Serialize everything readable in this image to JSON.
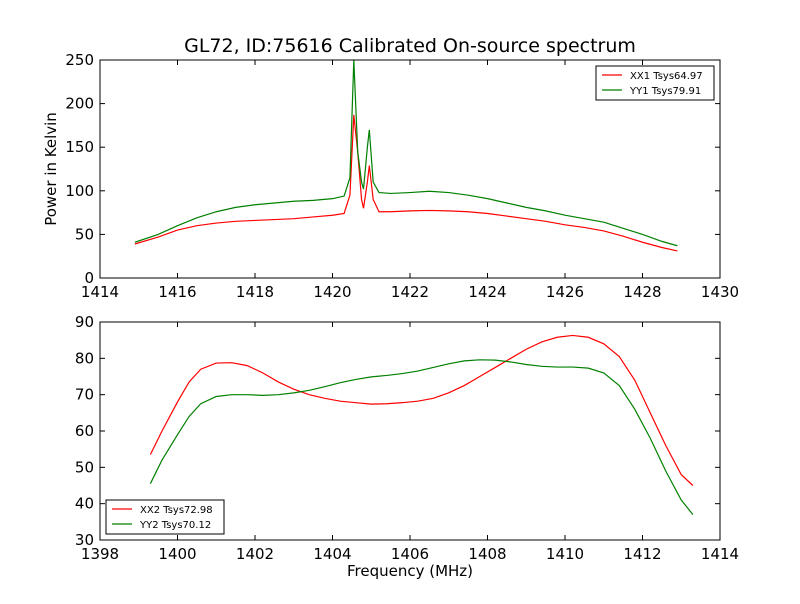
{
  "title": "GL72, ID:75616 Calibrated On-source spectrum",
  "colors": {
    "red": "#ff0000",
    "green": "#008000"
  },
  "chart_data": [
    {
      "type": "line",
      "xlabel": "",
      "ylabel": "Power in Kelvin",
      "xlim": [
        1414,
        1430
      ],
      "ylim": [
        0,
        250
      ],
      "xticks": [
        1414,
        1416,
        1418,
        1420,
        1422,
        1424,
        1426,
        1428,
        1430
      ],
      "yticks": [
        0,
        50,
        100,
        150,
        200,
        250
      ],
      "legend_position": "top-right",
      "series": [
        {
          "name": "XX1 Tsys64.97",
          "color": "#ff0000",
          "x": [
            1414.9,
            1415.5,
            1416,
            1416.5,
            1417,
            1417.5,
            1418,
            1418.5,
            1419,
            1419.5,
            1420,
            1420.3,
            1420.45,
            1420.55,
            1420.65,
            1420.75,
            1420.8,
            1420.9,
            1420.95,
            1421.05,
            1421.2,
            1421.5,
            1422,
            1422.5,
            1423,
            1423.5,
            1424,
            1424.5,
            1425,
            1425.5,
            1426,
            1426.5,
            1427,
            1427.5,
            1428,
            1428.5,
            1428.9
          ],
          "y": [
            39,
            47,
            55,
            60,
            63,
            65,
            66,
            67,
            68,
            70,
            72,
            74,
            95,
            187,
            145,
            90,
            80,
            110,
            129,
            90,
            76,
            76,
            77,
            77.5,
            77,
            76,
            74,
            71,
            68,
            65,
            61,
            58,
            54,
            48,
            41,
            35,
            31
          ]
        },
        {
          "name": "YY1 Tsys79.91",
          "color": "#008000",
          "x": [
            1414.9,
            1415.5,
            1416,
            1416.5,
            1417,
            1417.5,
            1418,
            1418.5,
            1419,
            1419.5,
            1420,
            1420.3,
            1420.45,
            1420.55,
            1420.65,
            1420.75,
            1420.8,
            1420.9,
            1420.95,
            1421.05,
            1421.2,
            1421.5,
            1422,
            1422.5,
            1423,
            1423.5,
            1424,
            1424.5,
            1425,
            1425.5,
            1426,
            1426.5,
            1427,
            1427.5,
            1428,
            1428.5,
            1428.9
          ],
          "y": [
            41,
            50,
            60,
            69,
            76,
            81,
            84,
            86,
            88,
            89,
            91,
            94,
            115,
            250,
            145,
            110,
            102,
            150,
            170,
            110,
            98,
            97,
            98,
            99.5,
            98,
            95,
            91,
            86,
            81,
            77,
            72,
            68,
            64,
            57,
            50,
            42,
            37
          ]
        }
      ]
    },
    {
      "type": "line",
      "xlabel": "Frequency (MHz)",
      "ylabel": "",
      "xlim": [
        1398,
        1414
      ],
      "ylim": [
        30,
        90
      ],
      "xticks": [
        1398,
        1400,
        1402,
        1404,
        1406,
        1408,
        1410,
        1412,
        1414
      ],
      "yticks": [
        30,
        40,
        50,
        60,
        70,
        80,
        90
      ],
      "legend_position": "bottom-left",
      "series": [
        {
          "name": "XX2 Tsys72.98",
          "color": "#ff0000",
          "x": [
            1399.3,
            1399.6,
            1400,
            1400.3,
            1400.6,
            1401,
            1401.4,
            1401.8,
            1402.2,
            1402.6,
            1403,
            1403.4,
            1403.8,
            1404.2,
            1404.6,
            1405,
            1405.4,
            1405.8,
            1406.2,
            1406.6,
            1407,
            1407.4,
            1407.8,
            1408.2,
            1408.6,
            1409,
            1409.4,
            1409.8,
            1410.2,
            1410.6,
            1411,
            1411.4,
            1411.8,
            1412.2,
            1412.6,
            1413,
            1413.3
          ],
          "y": [
            53.5,
            60,
            68,
            73.5,
            77,
            78.7,
            78.8,
            78,
            76,
            73.5,
            71.5,
            70,
            69,
            68.2,
            67.8,
            67.4,
            67.5,
            67.8,
            68.2,
            69,
            70.5,
            72.5,
            75,
            77.5,
            80,
            82.5,
            84.5,
            85.8,
            86.3,
            85.8,
            84,
            80.5,
            74,
            65,
            56,
            48,
            45
          ]
        },
        {
          "name": "YY2 Tsys70.12",
          "color": "#008000",
          "x": [
            1399.3,
            1399.6,
            1400,
            1400.3,
            1400.6,
            1401,
            1401.4,
            1401.8,
            1402.2,
            1402.6,
            1403,
            1403.4,
            1403.8,
            1404.2,
            1404.6,
            1405,
            1405.4,
            1405.8,
            1406.2,
            1406.6,
            1407,
            1407.4,
            1407.8,
            1408.2,
            1408.6,
            1409,
            1409.4,
            1409.8,
            1410.2,
            1410.6,
            1411,
            1411.4,
            1411.8,
            1412.2,
            1412.6,
            1413,
            1413.3
          ],
          "y": [
            45.5,
            52,
            59,
            64,
            67.5,
            69.5,
            70,
            70,
            69.8,
            70,
            70.5,
            71.2,
            72.2,
            73.3,
            74.2,
            74.9,
            75.3,
            75.8,
            76.5,
            77.5,
            78.5,
            79.3,
            79.6,
            79.5,
            79,
            78.3,
            77.8,
            77.6,
            77.6,
            77.3,
            76,
            72.5,
            66,
            58,
            49,
            41,
            37
          ]
        }
      ]
    }
  ]
}
